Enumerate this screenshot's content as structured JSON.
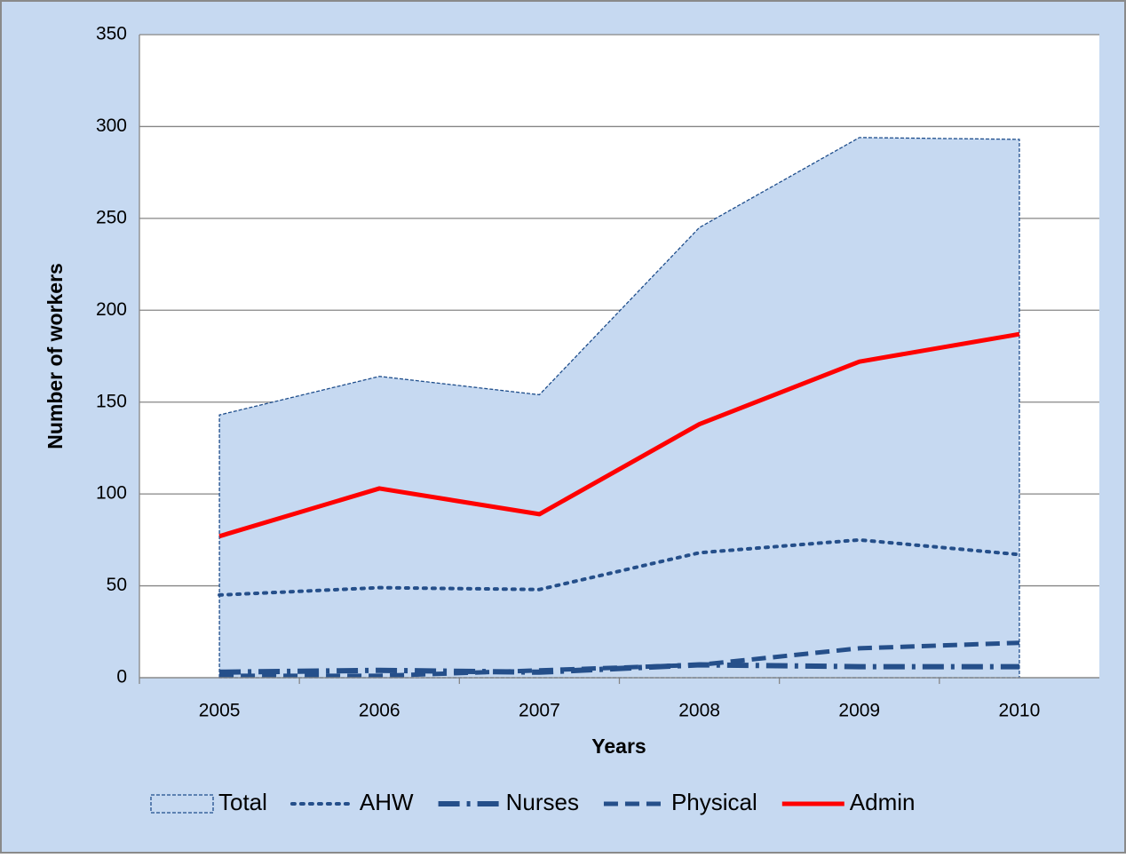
{
  "chart_data": {
    "type": "line",
    "x_label": "Years",
    "y_label": "Number of workers",
    "categories": [
      "2005",
      "2006",
      "2007",
      "2008",
      "2009",
      "2010"
    ],
    "series": [
      {
        "name": "Total",
        "color": "#1f4e8c",
        "fill": "#c6d9f1",
        "style": "area",
        "values": [
          143,
          164,
          154,
          245,
          294,
          293
        ]
      },
      {
        "name": "AHW",
        "color": "#254f8a",
        "style": "dotted",
        "values": [
          45,
          49,
          48,
          68,
          75,
          67
        ]
      },
      {
        "name": "Nurses",
        "color": "#254f8a",
        "style": "dashdot",
        "values": [
          3,
          4,
          3,
          7,
          6,
          6
        ]
      },
      {
        "name": "Physical",
        "color": "#254f8a",
        "style": "dashed",
        "values": [
          1,
          1,
          4,
          7,
          16,
          19
        ]
      },
      {
        "name": "Admin",
        "color": "#ff0000",
        "style": "solid",
        "values": [
          77,
          103,
          89,
          138,
          172,
          187
        ]
      }
    ],
    "ylim": [
      0,
      350
    ],
    "yticks": [
      0,
      50,
      100,
      150,
      200,
      250,
      300,
      350
    ],
    "grid": true,
    "legend": "bottom"
  }
}
